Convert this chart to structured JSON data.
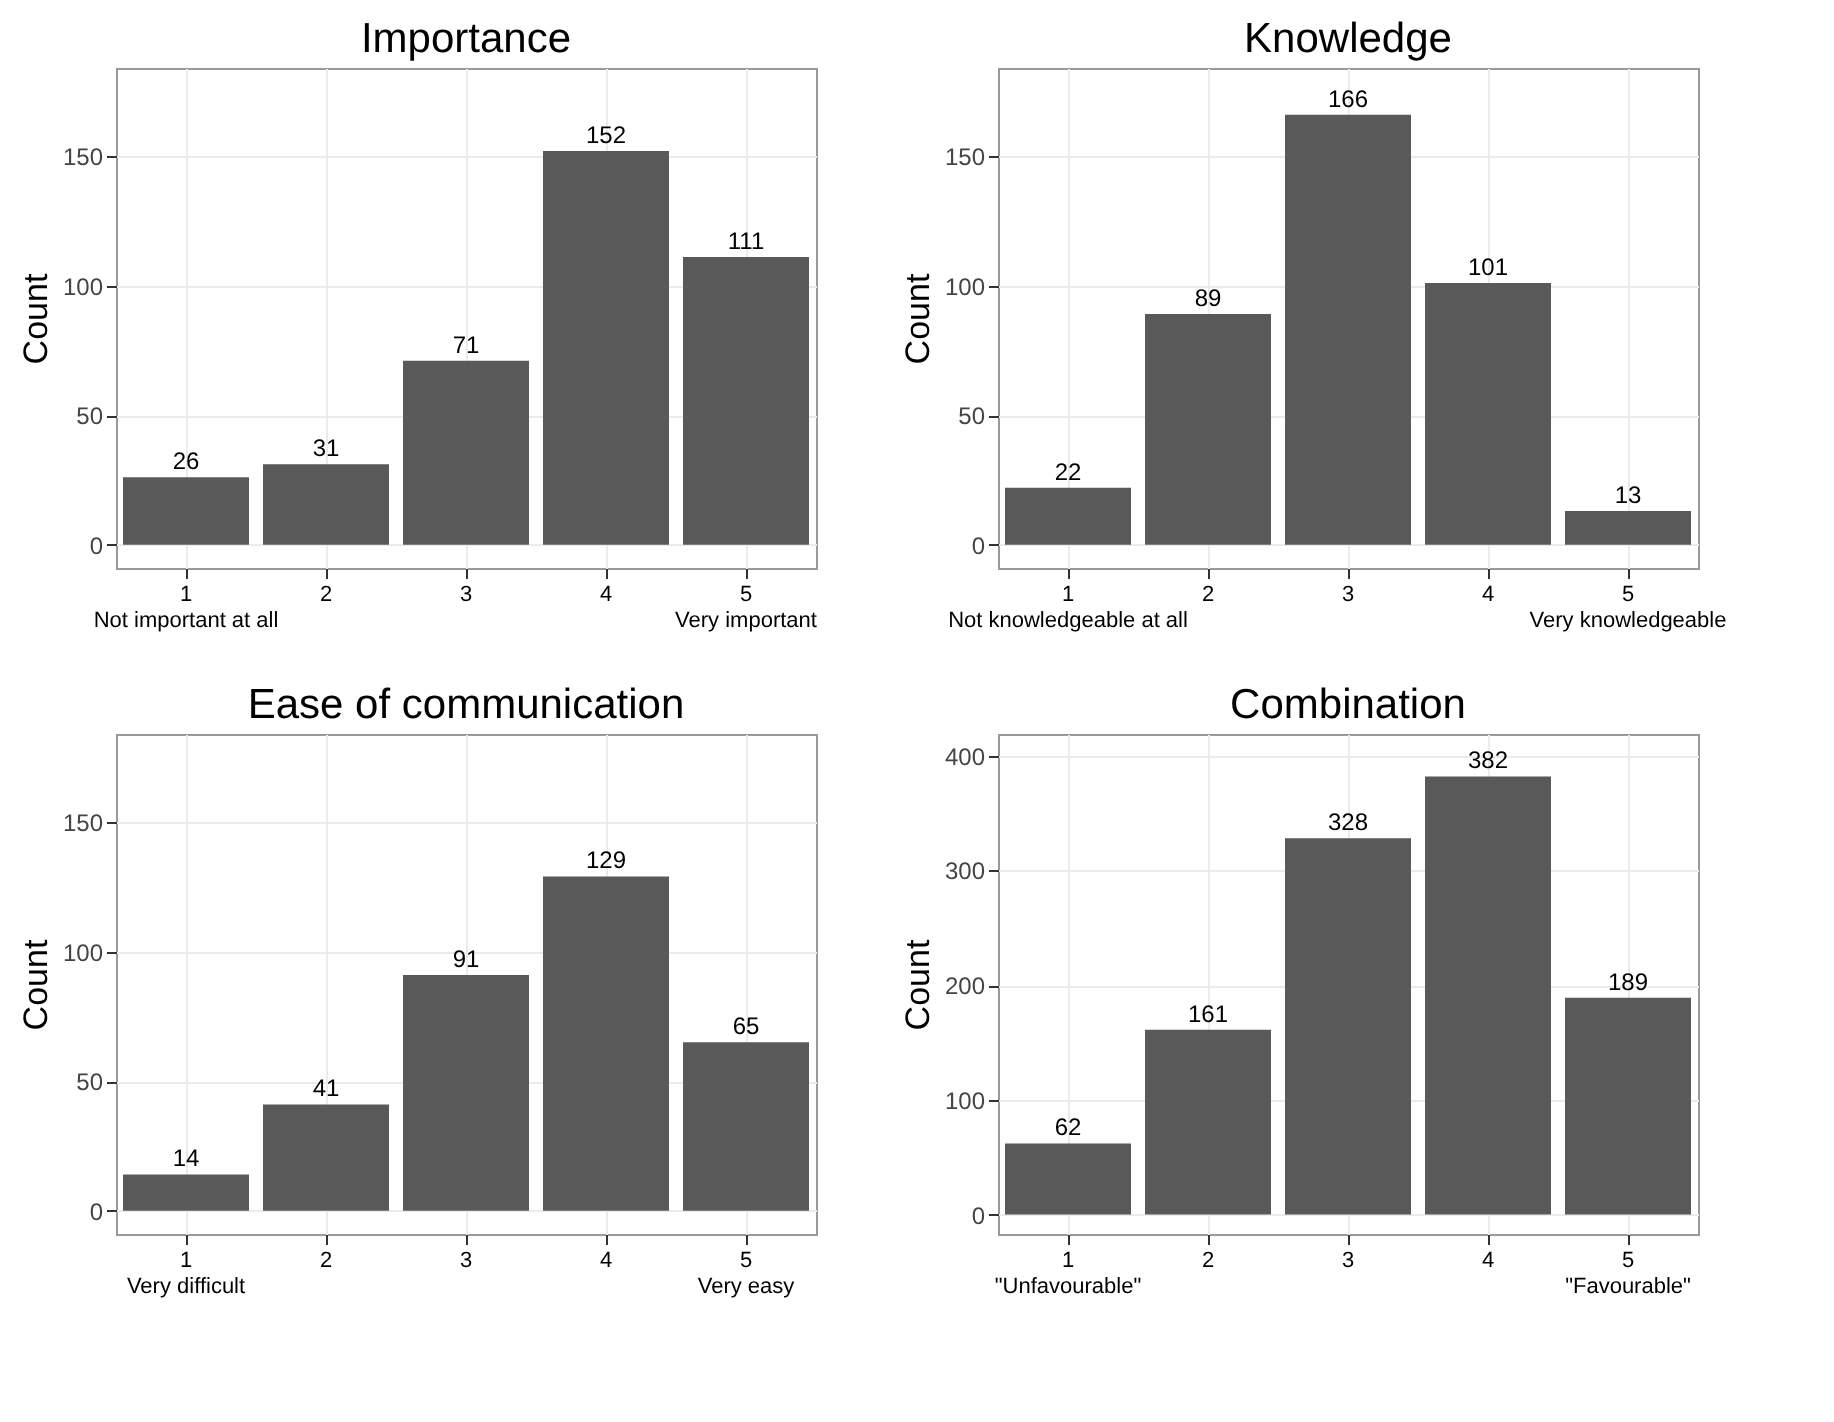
{
  "chart_data": [
    {
      "type": "bar",
      "title": "Importance",
      "ylabel": "Count",
      "categories": [
        "1\nNot important at all",
        "2",
        "3",
        "4",
        "5\nVery important"
      ],
      "values": [
        26,
        31,
        71,
        152,
        111
      ],
      "color": "#595959",
      "ylim": [
        -9,
        184
      ],
      "yticks": [
        0,
        50,
        100,
        150
      ],
      "grid": true,
      "data_labels": true
    },
    {
      "type": "bar",
      "title": "Knowledge",
      "ylabel": "Count",
      "categories": [
        "1\nNot knowledgeable at all",
        "2",
        "3",
        "4",
        "5\nVery knowledgeable"
      ],
      "values": [
        22,
        89,
        166,
        101,
        13
      ],
      "color": "#595959",
      "ylim": [
        -9,
        184
      ],
      "yticks": [
        0,
        50,
        100,
        150
      ],
      "grid": true,
      "data_labels": true
    },
    {
      "type": "bar",
      "title": "Ease of communication",
      "ylabel": "Count",
      "categories": [
        "1\nVery difficult",
        "2",
        "3",
        "4",
        "5\nVery easy"
      ],
      "values": [
        14,
        41,
        91,
        129,
        65
      ],
      "color": "#595959",
      "ylim": [
        -9,
        184
      ],
      "yticks": [
        0,
        50,
        100,
        150
      ],
      "grid": true,
      "data_labels": true
    },
    {
      "type": "bar",
      "title": "Combination",
      "ylabel": "Count",
      "categories": [
        "1\n\"Unfavourable\"",
        "2",
        "3",
        "4",
        "5\n\"Favourable\""
      ],
      "values": [
        62,
        161,
        328,
        382,
        189
      ],
      "color": "#595959",
      "ylim": [
        -17,
        419
      ],
      "yticks": [
        0,
        100,
        200,
        300,
        400
      ],
      "grid": true,
      "data_labels": true
    }
  ]
}
